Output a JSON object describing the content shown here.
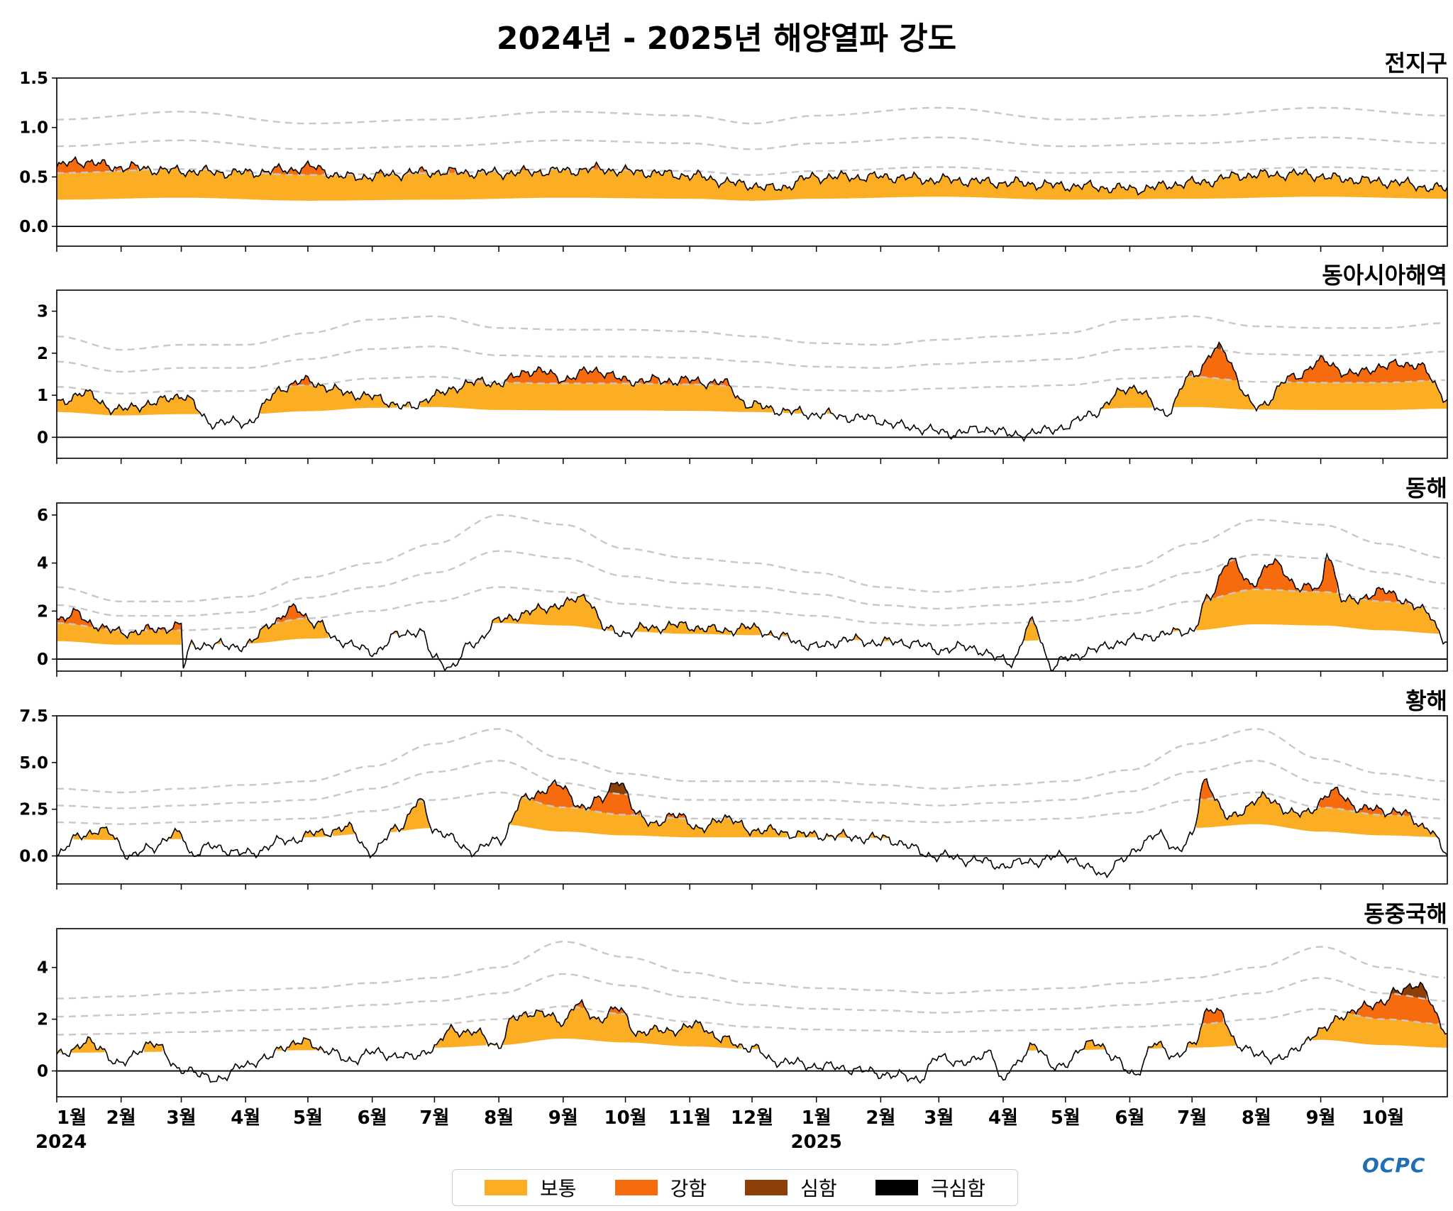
{
  "title": "2024년 - 2025년 해양열파 강도",
  "logo": "OCPC",
  "colors": {
    "moderate": "#FBAE24",
    "strong": "#F76B0F",
    "severe": "#8C3F07",
    "extreme": "#000000",
    "threshold": "#c8c8c8"
  },
  "legend": [
    {
      "label": "보통",
      "color": "#FBAE24"
    },
    {
      "label": "강함",
      "color": "#F76B0F"
    },
    {
      "label": "심함",
      "color": "#8C3F07"
    },
    {
      "label": "극심함",
      "color": "#000000"
    }
  ],
  "x_ticks": [
    {
      "label": "1월",
      "sub": "2024",
      "day": 0
    },
    {
      "label": "2월",
      "day": 31
    },
    {
      "label": "3월",
      "day": 60
    },
    {
      "label": "4월",
      "day": 91
    },
    {
      "label": "5월",
      "day": 121
    },
    {
      "label": "6월",
      "day": 152
    },
    {
      "label": "7월",
      "day": 182
    },
    {
      "label": "8월",
      "day": 213
    },
    {
      "label": "9월",
      "day": 244
    },
    {
      "label": "10월",
      "day": 274
    },
    {
      "label": "11월",
      "day": 305
    },
    {
      "label": "12월",
      "day": 335
    },
    {
      "label": "1월",
      "sub": "2025",
      "day": 366
    },
    {
      "label": "2월",
      "day": 397
    },
    {
      "label": "3월",
      "day": 425
    },
    {
      "label": "4월",
      "day": 456
    },
    {
      "label": "5월",
      "day": 486
    },
    {
      "label": "6월",
      "day": 517
    },
    {
      "label": "7월",
      "day": 547
    },
    {
      "label": "8월",
      "day": 578
    },
    {
      "label": "9월",
      "day": 609
    },
    {
      "label": "10월",
      "day": 639
    }
  ],
  "chart_data": [
    {
      "type": "area",
      "region": "전지구",
      "ylim": [
        -0.2,
        1.5
      ],
      "yticks": [
        "0.0",
        "0.5",
        "1.0",
        "1.5"
      ],
      "threshold_knots": {
        "day": [
          0,
          60,
          121,
          182,
          244,
          305,
          335,
          366,
          425,
          486,
          547,
          609,
          670
        ],
        "values": [
          0.27,
          0.29,
          0.26,
          0.27,
          0.29,
          0.28,
          0.26,
          0.28,
          0.3,
          0.27,
          0.28,
          0.3,
          0.28
        ]
      },
      "anomaly_knots": {
        "day": [
          0,
          10,
          30,
          60,
          90,
          110,
          121,
          140,
          182,
          213,
          244,
          260,
          280,
          300,
          335,
          345,
          366,
          400,
          425,
          460,
          486,
          520,
          547,
          575,
          600,
          620,
          640,
          670
        ],
        "values": [
          0.6,
          0.66,
          0.6,
          0.56,
          0.54,
          0.57,
          0.6,
          0.5,
          0.55,
          0.54,
          0.56,
          0.58,
          0.55,
          0.52,
          0.42,
          0.38,
          0.5,
          0.5,
          0.47,
          0.44,
          0.41,
          0.38,
          0.44,
          0.52,
          0.53,
          0.48,
          0.45,
          0.38
        ]
      }
    },
    {
      "type": "area",
      "region": "동아시아해역",
      "ylim": [
        -0.5,
        3.5
      ],
      "yticks": [
        "0",
        "1",
        "2",
        "3"
      ],
      "threshold_knots": {
        "day": [
          0,
          31,
          60,
          91,
          121,
          152,
          182,
          213,
          244,
          274,
          305,
          335,
          366,
          397,
          425,
          456,
          486,
          517,
          547,
          578,
          609,
          639,
          670
        ],
        "values": [
          0.6,
          0.52,
          0.55,
          0.55,
          0.62,
          0.7,
          0.72,
          0.65,
          0.64,
          0.64,
          0.63,
          0.6,
          0.56,
          0.55,
          0.58,
          0.6,
          0.62,
          0.7,
          0.72,
          0.66,
          0.65,
          0.65,
          0.68
        ]
      },
      "anomaly_knots": {
        "day": [
          0,
          12,
          30,
          45,
          60,
          75,
          91,
          110,
          121,
          135,
          152,
          170,
          182,
          200,
          213,
          230,
          244,
          260,
          274,
          300,
          320,
          335,
          355,
          366,
          390,
          410,
          430,
          450,
          460,
          470,
          486,
          500,
          517,
          535,
          547,
          560,
          578,
          595,
          609,
          625,
          639,
          655,
          670
        ],
        "values": [
          0.8,
          1.05,
          0.65,
          0.8,
          1.0,
          0.35,
          0.35,
          1.2,
          1.35,
          1.1,
          0.95,
          0.7,
          1.0,
          1.3,
          1.3,
          1.6,
          1.4,
          1.6,
          1.35,
          1.35,
          1.3,
          0.75,
          0.6,
          0.55,
          0.45,
          0.25,
          0.1,
          0.2,
          0.05,
          0.1,
          0.25,
          0.6,
          1.2,
          0.6,
          1.5,
          2.1,
          0.7,
          1.4,
          1.8,
          1.5,
          1.7,
          1.75,
          0.95
        ]
      }
    },
    {
      "type": "area",
      "region": "동해",
      "ylim": [
        -0.5,
        6.5
      ],
      "yticks": [
        "0",
        "2",
        "4",
        "6"
      ],
      "threshold_knots": {
        "day": [
          0,
          31,
          60,
          91,
          121,
          152,
          182,
          213,
          244,
          274,
          305,
          335,
          366,
          397,
          425,
          456,
          486,
          517,
          547,
          578,
          609,
          639,
          670
        ],
        "values": [
          0.75,
          0.6,
          0.6,
          0.65,
          0.85,
          1.0,
          1.2,
          1.5,
          1.4,
          1.15,
          1.05,
          1.0,
          0.9,
          0.75,
          0.7,
          0.75,
          0.8,
          0.95,
          1.2,
          1.45,
          1.4,
          1.2,
          1.05
        ]
      },
      "anomaly_knots": {
        "day": [
          0,
          10,
          15,
          31,
          45,
          60,
          61,
          65,
          91,
          105,
          115,
          125,
          135,
          152,
          165,
          175,
          182,
          190,
          200,
          213,
          230,
          244,
          255,
          265,
          274,
          285,
          300,
          320,
          335,
          350,
          366,
          380,
          397,
          410,
          425,
          440,
          455,
          460,
          470,
          480,
          486,
          500,
          517,
          530,
          547,
          555,
          565,
          575,
          585,
          600,
          609,
          612,
          620,
          640,
          660,
          670
        ],
        "values": [
          1.7,
          1.9,
          1.5,
          1.1,
          1.2,
          1.4,
          -0.3,
          0.6,
          0.55,
          1.6,
          2.1,
          1.5,
          0.8,
          0.3,
          1.0,
          1.2,
          0.0,
          -0.3,
          0.6,
          1.6,
          2.0,
          2.3,
          2.6,
          1.2,
          1.1,
          1.3,
          1.4,
          1.2,
          1.3,
          0.9,
          0.5,
          0.8,
          0.7,
          0.7,
          0.4,
          0.5,
          0.0,
          -0.1,
          1.5,
          -0.3,
          0.0,
          0.4,
          0.8,
          1.0,
          1.2,
          2.5,
          4.2,
          3.1,
          4.0,
          3.0,
          2.9,
          4.5,
          2.4,
          2.8,
          2.0,
          0.7
        ]
      }
    },
    {
      "type": "area",
      "region": "황해",
      "ylim": [
        -1.5,
        7.5
      ],
      "yticks": [
        "0.0",
        "2.5",
        "5.0",
        "7.5"
      ],
      "threshold_knots": {
        "day": [
          0,
          31,
          60,
          91,
          121,
          152,
          182,
          213,
          244,
          274,
          305,
          335,
          366,
          397,
          425,
          456,
          486,
          517,
          547,
          578,
          609,
          639,
          670
        ],
        "values": [
          0.9,
          0.85,
          0.9,
          0.95,
          1.0,
          1.2,
          1.5,
          1.7,
          1.3,
          1.1,
          1.0,
          1.0,
          1.0,
          0.95,
          0.9,
          0.95,
          1.0,
          1.15,
          1.5,
          1.7,
          1.3,
          1.1,
          1.0
        ]
      },
      "anomaly_knots": {
        "day": [
          0,
          12,
          25,
          36,
          45,
          60,
          65,
          75,
          91,
          110,
          125,
          140,
          152,
          165,
          175,
          182,
          200,
          213,
          225,
          240,
          255,
          262,
          270,
          280,
          290,
          300,
          310,
          320,
          335,
          366,
          397,
          425,
          440,
          456,
          470,
          486,
          500,
          505,
          510,
          530,
          540,
          547,
          553,
          565,
          580,
          600,
          615,
          630,
          645,
          660,
          670
        ],
        "values": [
          0.0,
          1.2,
          1.3,
          -0.1,
          0.5,
          1.2,
          0.1,
          0.5,
          0.1,
          0.8,
          1.2,
          1.5,
          0.2,
          1.6,
          2.9,
          1.4,
          0.3,
          0.8,
          3.0,
          3.8,
          2.6,
          3.0,
          4.1,
          2.2,
          1.7,
          2.3,
          1.3,
          2.1,
          1.4,
          1.1,
          0.95,
          0.0,
          -0.2,
          -0.5,
          -0.3,
          0.0,
          -0.8,
          -1.0,
          -0.4,
          1.1,
          0.4,
          1.0,
          4.0,
          2.0,
          3.1,
          2.2,
          3.4,
          2.5,
          2.4,
          1.6,
          0.1
        ]
      }
    },
    {
      "type": "area",
      "region": "동중국해",
      "ylim": [
        -1.0,
        5.5
      ],
      "yticks": [
        "0",
        "2",
        "4"
      ],
      "threshold_knots": {
        "day": [
          0,
          31,
          60,
          91,
          121,
          152,
          182,
          213,
          244,
          274,
          305,
          335,
          366,
          397,
          425,
          456,
          486,
          517,
          547,
          578,
          609,
          639,
          670
        ],
        "values": [
          0.7,
          0.72,
          0.75,
          0.78,
          0.8,
          0.85,
          0.9,
          1.0,
          1.25,
          1.1,
          0.95,
          0.85,
          0.8,
          0.78,
          0.75,
          0.78,
          0.8,
          0.85,
          0.9,
          1.0,
          1.2,
          1.0,
          0.9
        ]
      },
      "anomaly_knots": {
        "day": [
          0,
          15,
          20,
          31,
          45,
          60,
          70,
          80,
          91,
          100,
          110,
          121,
          130,
          140,
          152,
          165,
          170,
          182,
          190,
          200,
          213,
          220,
          230,
          244,
          250,
          260,
          270,
          280,
          300,
          310,
          320,
          335,
          345,
          366,
          380,
          397,
          415,
          425,
          440,
          450,
          456,
          460,
          470,
          480,
          486,
          500,
          510,
          520,
          530,
          540,
          547,
          555,
          560,
          570,
          578,
          590,
          609,
          620,
          640,
          645,
          655,
          670
        ],
        "values": [
          0.6,
          1.1,
          0.9,
          0.25,
          1.1,
          0.1,
          -0.2,
          -0.3,
          0.3,
          0.4,
          1.0,
          1.1,
          0.8,
          0.4,
          0.7,
          0.6,
          0.5,
          0.9,
          1.6,
          1.5,
          1.0,
          2.0,
          2.3,
          1.9,
          2.6,
          2.0,
          2.4,
          1.5,
          1.6,
          1.8,
          1.2,
          0.9,
          0.4,
          0.2,
          0.1,
          -0.1,
          -0.3,
          0.5,
          0.3,
          0.8,
          -0.5,
          0.1,
          1.0,
          0.2,
          0.3,
          1.2,
          0.4,
          -0.1,
          1.1,
          0.5,
          1.0,
          2.4,
          2.2,
          1.0,
          0.6,
          0.5,
          1.5,
          2.2,
          2.7,
          3.0,
          3.4,
          1.6
        ]
      }
    }
  ]
}
